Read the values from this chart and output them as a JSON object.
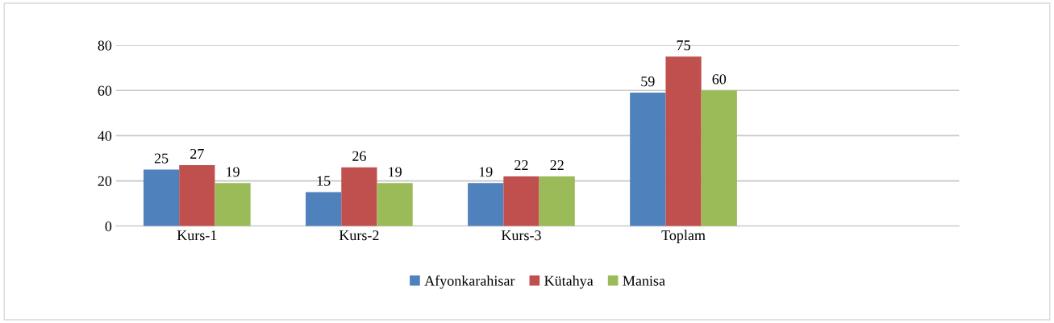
{
  "chart_data": {
    "type": "bar",
    "categories": [
      "Kurs-1",
      "Kurs-2",
      "Kurs-3",
      "Toplam"
    ],
    "series": [
      {
        "name": "Afyonkarahisar",
        "color": "#4f81bd",
        "values": [
          25,
          15,
          19,
          59
        ]
      },
      {
        "name": "Kütahya",
        "color": "#c0504d",
        "values": [
          27,
          26,
          22,
          75
        ]
      },
      {
        "name": "Manisa",
        "color": "#9bbb59",
        "values": [
          19,
          19,
          22,
          60
        ]
      }
    ],
    "ylim": [
      0,
      80
    ],
    "yticks": [
      0,
      20,
      40,
      60,
      80
    ],
    "grid": "y",
    "legend": "bottom",
    "data_labels": true
  }
}
